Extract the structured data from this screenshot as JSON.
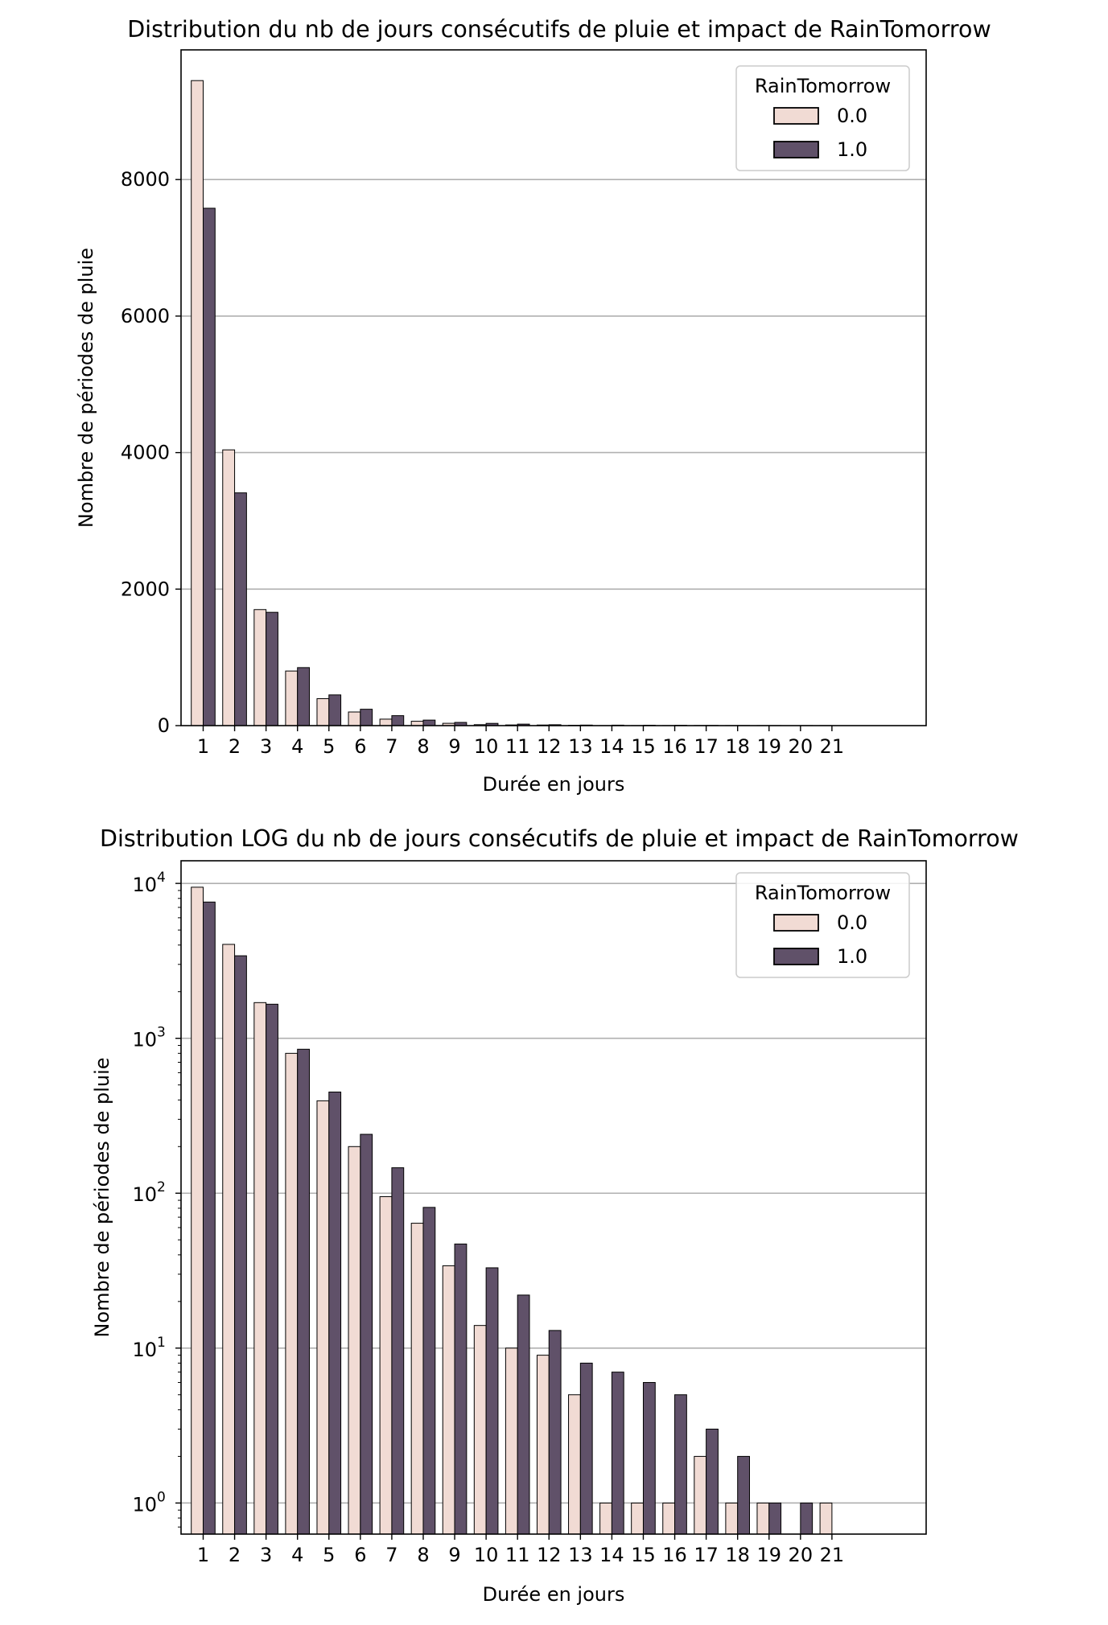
{
  "chart_data": [
    {
      "type": "bar",
      "title": "Distribution du nb de jours consécutifs de pluie et impact de RainTomorrow",
      "xlabel": "Durée en jours",
      "ylabel": "Nombre de périodes de pluie",
      "yscale": "linear",
      "ylim": [
        0,
        9900
      ],
      "yticks": [
        0,
        2000,
        4000,
        6000,
        8000
      ],
      "ytick_labels": [
        "0",
        "2000",
        "4000",
        "6000",
        "8000"
      ],
      "grid": "horizontal",
      "legend_position": "top-right",
      "legend_title": "RainTomorrow",
      "categories": [
        "1",
        "2",
        "3",
        "4",
        "5",
        "6",
        "7",
        "8",
        "9",
        "10",
        "11",
        "12",
        "13",
        "14",
        "15",
        "16",
        "17",
        "18",
        "19",
        "20",
        "21"
      ],
      "series": [
        {
          "name": "0.0",
          "color": "#f1dbd4",
          "values": [
            9450,
            4040,
            1700,
            800,
            395,
            200,
            95,
            64,
            34,
            14,
            10,
            9,
            5,
            1,
            1,
            1,
            2,
            1,
            1,
            0,
            1
          ]
        },
        {
          "name": "1.0",
          "color": "#605169",
          "values": [
            7580,
            3410,
            1660,
            850,
            450,
            240,
            146,
            81,
            47,
            33,
            22,
            13,
            8,
            7,
            6,
            5,
            3,
            2,
            1,
            1,
            0
          ]
        }
      ]
    },
    {
      "type": "bar",
      "title": "Distribution LOG du nb de jours consécutifs de pluie et impact de RainTomorrow",
      "xlabel": "Durée en jours",
      "ylabel": "Nombre de périodes de pluie",
      "yscale": "log",
      "ylim": [
        0.63,
        14000
      ],
      "yticks": [
        1,
        10,
        100,
        1000,
        10000
      ],
      "ytick_labels": [
        {
          "base": "10",
          "exp": "0"
        },
        {
          "base": "10",
          "exp": "1"
        },
        {
          "base": "10",
          "exp": "2"
        },
        {
          "base": "10",
          "exp": "3"
        },
        {
          "base": "10",
          "exp": "4"
        }
      ],
      "grid": "horizontal",
      "legend_position": "top-right",
      "legend_title": "RainTomorrow",
      "categories": [
        "1",
        "2",
        "3",
        "4",
        "5",
        "6",
        "7",
        "8",
        "9",
        "10",
        "11",
        "12",
        "13",
        "14",
        "15",
        "16",
        "17",
        "18",
        "19",
        "20",
        "21"
      ],
      "series": [
        {
          "name": "0.0",
          "color": "#f1dbd4",
          "values": [
            9450,
            4040,
            1700,
            800,
            395,
            200,
            95,
            64,
            34,
            14,
            10,
            9,
            5,
            1,
            1,
            1,
            2,
            1,
            1,
            0,
            1
          ]
        },
        {
          "name": "1.0",
          "color": "#605169",
          "values": [
            7580,
            3410,
            1660,
            850,
            450,
            240,
            146,
            81,
            47,
            33,
            22,
            13,
            8,
            7,
            6,
            5,
            3,
            2,
            1,
            1,
            0
          ]
        }
      ]
    }
  ]
}
